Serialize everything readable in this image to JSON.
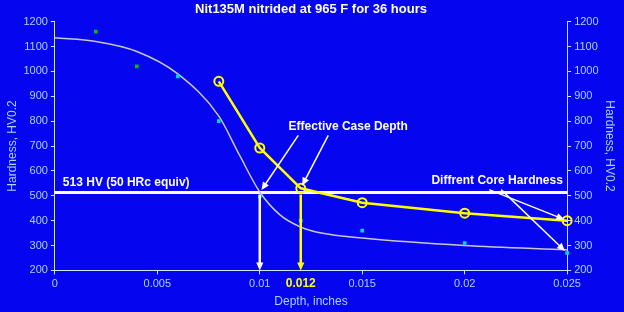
{
  "chart_data": {
    "type": "scatter",
    "title": "Nit135M nitrided at 965 F for 36 hours",
    "x_label": "Depth, inches",
    "y_label": "Hardness, HV0.2",
    "y2_label": "Hardness, HV0.2",
    "xlim": [
      0,
      0.025
    ],
    "xticks": [
      0,
      0.005,
      0.01,
      0.015,
      0.02,
      0.025
    ],
    "ylim": [
      200,
      1200
    ],
    "yticks": [
      200,
      300,
      400,
      500,
      600,
      700,
      800,
      900,
      1000,
      1100,
      1200
    ],
    "y2lim": [
      200,
      1200
    ],
    "y2ticks": [
      200,
      300,
      400,
      500,
      600,
      700,
      800,
      900,
      1000,
      1100,
      1200
    ],
    "grid": false,
    "series": [
      {
        "type": "scatter",
        "marker": "square",
        "x": [
          0.002,
          0.004,
          0.006,
          0.008,
          0.01,
          0.012,
          0.015,
          0.02,
          0.025
        ],
        "values": [
          1160,
          1020,
          980,
          800,
          497,
          400,
          360,
          310,
          270
        ],
        "colors": [
          "#00c000",
          "#00c000",
          "#00d8d8",
          "#00d8d8",
          "#00d8d8",
          "#00d8d8",
          "#00d8d8",
          "#00d8d8",
          "#00d8d8"
        ]
      },
      {
        "type": "line",
        "marker": "none",
        "line_style": "smooth",
        "color": "#c8c8c8",
        "x": [
          0,
          0.002,
          0.004,
          0.006,
          0.008,
          0.009,
          0.01,
          0.011,
          0.012,
          0.013,
          0.015,
          0.02,
          0.025
        ],
        "values": [
          1135,
          1120,
          1080,
          990,
          820,
          665,
          515,
          422,
          374,
          350,
          330,
          300,
          283
        ]
      },
      {
        "type": "line",
        "marker": "open_circle",
        "line_style": "solid",
        "color": "#ffff00",
        "x": [
          0.008,
          0.01,
          0.012,
          0.015,
          0.02,
          0.025
        ],
        "values": [
          960,
          692,
          530,
          472,
          430,
          400
        ]
      }
    ],
    "hline": {
      "y": 513,
      "text": "513 HV (50 HRc equiv)",
      "color": "#ffffff"
    },
    "drop_arrows": [
      {
        "x": 0.01,
        "y": 513,
        "color": "#ffffff"
      },
      {
        "x": 0.012,
        "y": 513,
        "color": "#ffff00",
        "text": "0.012"
      }
    ],
    "callouts": [
      {
        "text": "Effective Case Depth",
        "points": [
          [
            0.01,
            513
          ],
          [
            0.012,
            530
          ]
        ]
      },
      {
        "text": "Diffrent Core Hardness",
        "points": [
          [
            0.025,
            400
          ],
          [
            0.025,
            270
          ]
        ]
      }
    ]
  }
}
